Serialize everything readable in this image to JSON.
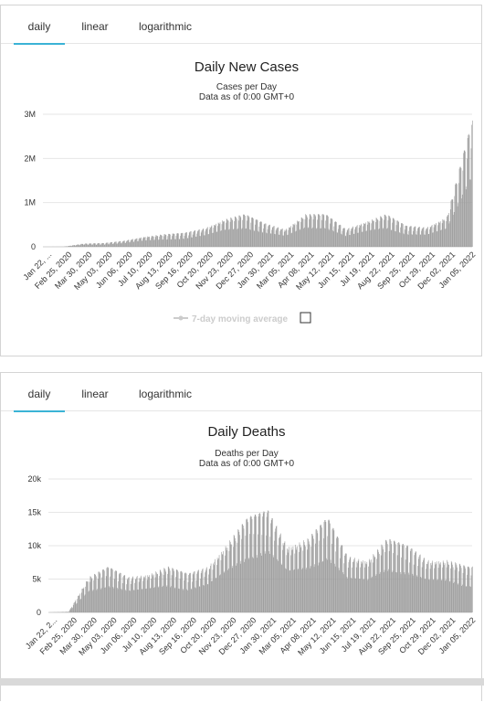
{
  "tabs": [
    "daily",
    "linear",
    "logarithmic"
  ],
  "chart_data": [
    {
      "type": "bar",
      "title": "Daily New Cases",
      "subtitle_line1": "Cases per Day",
      "subtitle_line2": "Data as of 0:00 GMT+0",
      "y_ticks": [
        "3M",
        "2M",
        "1M",
        "0"
      ],
      "ylim": [
        0,
        3000000
      ],
      "x_tick_labels": [
        "Jan 22, ...",
        "Feb 25, 2020",
        "Mar 30, 2020",
        "May 03, 2020",
        "Jun 06, 2020",
        "Jul 10, 2020",
        "Aug 13, 2020",
        "Sep 16, 2020",
        "Oct 20, 2020",
        "Nov 23, 2020",
        "Dec 27, 2020",
        "Jan 30, 2021",
        "Mar 05, 2021",
        "Apr 08, 2021",
        "May 12, 2021",
        "Jun 15, 2021",
        "Jul 19, 2021",
        "Aug 22, 2021",
        "Sep 25, 2021",
        "Oct 29, 2021",
        "Dec 02, 2021",
        "Jan 05, 2022"
      ],
      "legend": [
        "7-day moving average"
      ],
      "series": [
        {
          "x": [
            "2020-01-22",
            "2020-02-25",
            "2020-03-30",
            "2020-05-03",
            "2020-06-06",
            "2020-07-10",
            "2020-08-13",
            "2020-09-16",
            "2020-10-20",
            "2020-11-23",
            "2020-12-27",
            "2021-01-30",
            "2021-03-05",
            "2021-04-08",
            "2021-05-12",
            "2021-06-15",
            "2021-07-19",
            "2021-08-22",
            "2021-09-25",
            "2021-10-29",
            "2021-12-02",
            "2022-01-05",
            "2022-01-14"
          ],
          "values": [
            0,
            2000,
            70000,
            80000,
            130000,
            220000,
            270000,
            300000,
            400000,
            600000,
            700000,
            500000,
            380000,
            700000,
            700000,
            380000,
            550000,
            700000,
            450000,
            420000,
            650000,
            2300000,
            2700000
          ]
        }
      ]
    },
    {
      "type": "bar",
      "title": "Daily Deaths",
      "subtitle_line1": "Deaths per Day",
      "subtitle_line2": "Data as of 0:00 GMT+0",
      "y_ticks": [
        "20k",
        "15k",
        "10k",
        "5k",
        "0"
      ],
      "ylim": [
        0,
        20000
      ],
      "x_tick_labels": [
        "Jan 22, 2...",
        "Feb 25, 2020",
        "Mar 30, 2020",
        "May 03, 2020",
        "Jun 06, 2020",
        "Jul 10, 2020",
        "Aug 13, 2020",
        "Sep 16, 2020",
        "Oct 20, 2020",
        "Nov 23, 2020",
        "Dec 27, 2020",
        "Jan 30, 2021",
        "Mar 05, 2021",
        "Apr 08, 2021",
        "May 12, 2021",
        "Jun 15, 2021",
        "Jul 19, 2021",
        "Aug 22, 2021",
        "Sep 25, 2021",
        "Oct 29, 2021",
        "Dec 02, 2021",
        "Jan 05, 2022"
      ],
      "series": [
        {
          "x": [
            "2020-01-22",
            "2020-02-25",
            "2020-03-30",
            "2020-05-03",
            "2020-06-06",
            "2020-07-10",
            "2020-08-13",
            "2020-09-16",
            "2020-10-20",
            "2020-11-23",
            "2020-12-27",
            "2021-01-30",
            "2021-03-05",
            "2021-04-08",
            "2021-05-12",
            "2021-06-15",
            "2021-07-19",
            "2021-08-22",
            "2021-09-25",
            "2021-10-29",
            "2021-12-02",
            "2022-01-05",
            "2022-01-14"
          ],
          "values": [
            0,
            100,
            5000,
            6500,
            5000,
            5500,
            6500,
            5500,
            6500,
            10000,
            13500,
            14500,
            9500,
            10500,
            13500,
            8000,
            7500,
            10500,
            9500,
            7500,
            7500,
            6500,
            6500
          ]
        }
      ]
    }
  ],
  "colors": {
    "bar": "#9c9c9c",
    "grid": "#e6e6e6",
    "tab_active": "#3bb3d6",
    "legend": "#cccccc"
  }
}
